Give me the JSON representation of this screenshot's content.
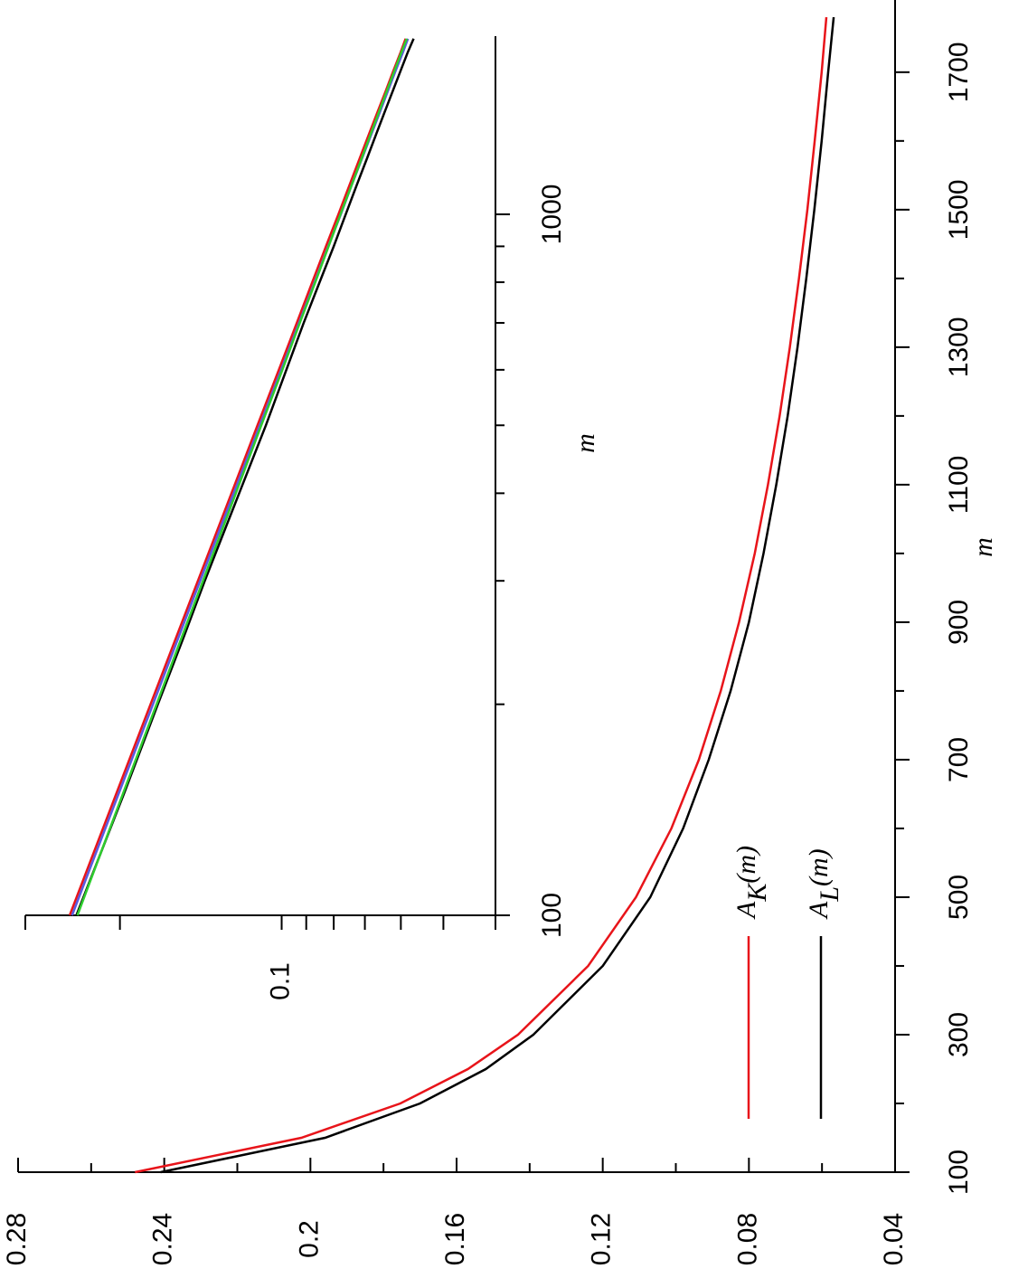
{
  "chart_data": [
    {
      "type": "line",
      "xlabel": "m",
      "x": [
        100,
        150,
        200,
        250,
        300,
        400,
        500,
        600,
        700,
        800,
        900,
        1000,
        1100,
        1200,
        1300,
        1400,
        1500,
        1600,
        1700,
        1780
      ],
      "series": [
        {
          "name": "AK(m)",
          "color": "#e8141a",
          "values": [
            0.248,
            0.2025,
            0.1754,
            0.1569,
            0.1432,
            0.124,
            0.1109,
            0.1012,
            0.0937,
            0.0877,
            0.0827,
            0.0784,
            0.0748,
            0.0716,
            0.0688,
            0.0663,
            0.064,
            0.062,
            0.0601,
            0.0588
          ]
        },
        {
          "name": "AL(m)",
          "color": "#000000",
          "values": [
            0.241,
            0.196,
            0.17,
            0.152,
            0.139,
            0.12,
            0.107,
            0.098,
            0.091,
            0.085,
            0.08,
            0.076,
            0.0725,
            0.0694,
            0.0667,
            0.0643,
            0.0621,
            0.0601,
            0.0583,
            0.0568
          ]
        }
      ],
      "xlim": [
        100,
        1805
      ],
      "ylim": [
        0.04,
        0.28
      ],
      "xticks": [
        100,
        300,
        500,
        700,
        900,
        1100,
        1300,
        1500,
        1700
      ],
      "xticks_minor": [
        200,
        400,
        600,
        800,
        1000,
        1200,
        1400,
        1600
      ],
      "yticks": [
        0.04,
        0.08,
        0.12,
        0.16,
        0.2,
        0.24,
        0.28
      ],
      "yticks_minor": [
        0.06,
        0.1,
        0.14,
        0.18,
        0.22,
        0.26
      ],
      "legend": true
    },
    {
      "type": "line",
      "xlabel": "m",
      "xscale": "log",
      "yscale": "log",
      "x": [
        100,
        150,
        200,
        250,
        300,
        400,
        500,
        600,
        700,
        800,
        900,
        1000,
        1100,
        1200,
        1300,
        1400,
        1500,
        1600,
        1700,
        1780
      ],
      "series": [
        {
          "color": "#e8141a",
          "values": [
            0.248,
            0.2025,
            0.1754,
            0.1569,
            0.1432,
            0.124,
            0.1109,
            0.1012,
            0.0937,
            0.0877,
            0.0827,
            0.0784,
            0.0748,
            0.0716,
            0.0688,
            0.0663,
            0.064,
            0.062,
            0.0601,
            0.0588
          ]
        },
        {
          "color": "#000000",
          "values": [
            0.241,
            0.196,
            0.17,
            0.152,
            0.139,
            0.12,
            0.107,
            0.098,
            0.091,
            0.085,
            0.08,
            0.076,
            0.0725,
            0.0694,
            0.0667,
            0.0643,
            0.0621,
            0.0601,
            0.0583,
            0.0568
          ]
        },
        {
          "color": "#5a5ae0",
          "values": [
            0.2455,
            0.2005,
            0.1736,
            0.1553,
            0.1418,
            0.1228,
            0.1098,
            0.1002,
            0.0928,
            0.0868,
            0.0819,
            0.0776,
            0.0741,
            0.0709,
            0.0681,
            0.0656,
            0.0634,
            0.0614,
            0.0595,
            0.0582
          ]
        },
        {
          "color": "#2ecc2e",
          "values": [
            0.24,
            0.1968,
            0.1709,
            0.1532,
            0.1401,
            0.1217,
            0.1091,
            0.0997,
            0.0925,
            0.0866,
            0.0818,
            0.0777,
            0.0741,
            0.071,
            0.0683,
            0.0659,
            0.0637,
            0.0617,
            0.0599,
            0.0585
          ]
        }
      ],
      "xlim": [
        100,
        1795
      ],
      "ylim": [
        0.04,
        0.3
      ],
      "xticks": [
        100,
        1000
      ],
      "xticks_minor": [
        200,
        300,
        400,
        500,
        600,
        700,
        800,
        900
      ],
      "yticks": [
        0.1
      ],
      "yticks_minor": [
        0.3,
        0.2,
        0.09,
        0.08,
        0.07,
        0.06,
        0.05,
        0.04
      ]
    }
  ]
}
